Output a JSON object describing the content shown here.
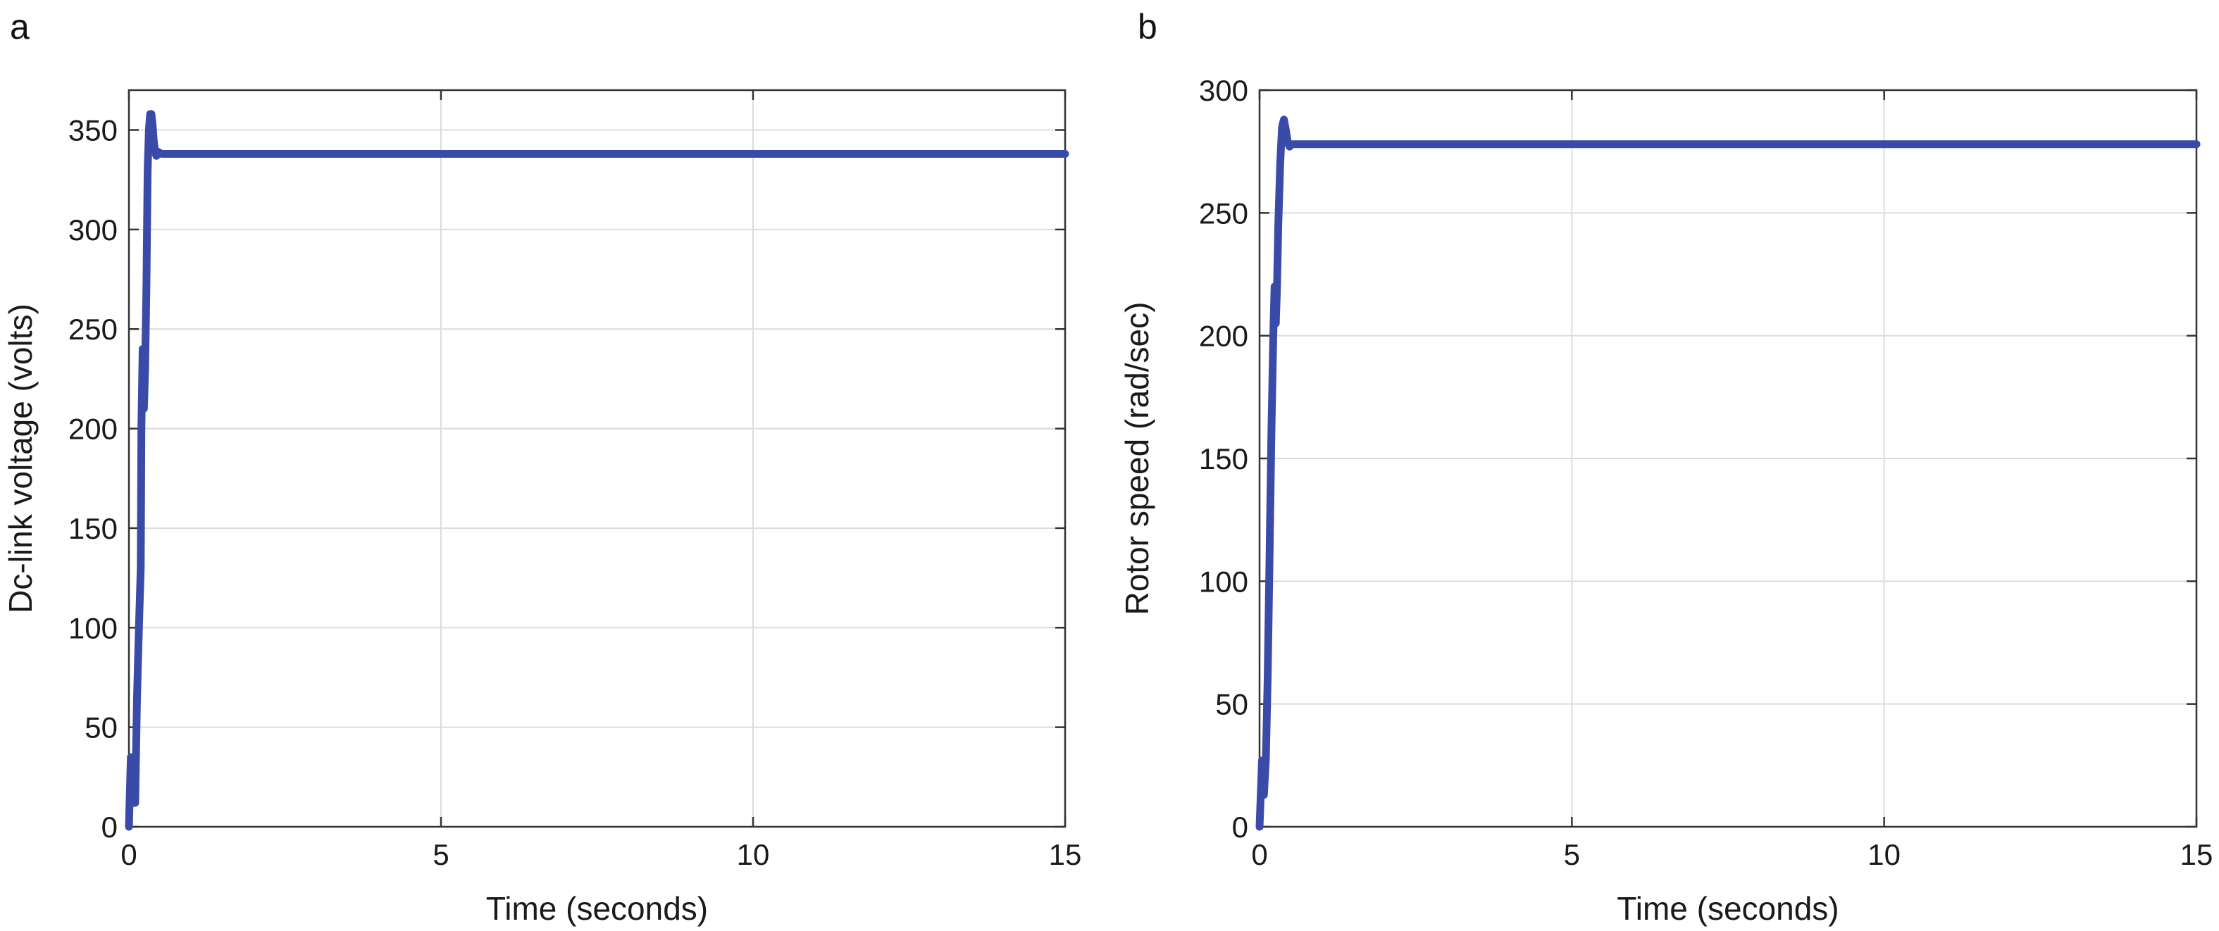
{
  "chart_data": [
    {
      "panel_label": "a",
      "type": "line",
      "xlabel": "Time (seconds)",
      "ylabel": "Dc-link voltage (volts)",
      "xlim": [
        0,
        15
      ],
      "ylim": [
        0,
        370
      ],
      "xticks": [
        0,
        5,
        10,
        15
      ],
      "yticks": [
        0,
        50,
        100,
        150,
        200,
        250,
        300,
        350
      ],
      "grid": true,
      "colors": {
        "series": "#3a4aa8"
      },
      "series": [
        {
          "x": [
            0,
            0.03,
            0.06,
            0.08,
            0.1,
            0.13,
            0.16,
            0.19,
            0.2,
            0.22,
            0.24,
            0.26,
            0.28,
            0.3,
            0.32,
            0.34,
            0.36,
            0.38,
            0.4,
            0.42,
            0.44,
            0.47,
            0.52,
            0.6,
            1,
            2,
            3,
            4,
            5,
            6,
            7,
            8,
            9,
            10,
            11,
            12,
            13,
            14,
            15
          ],
          "y": [
            0,
            35,
            12,
            35,
            12,
            65,
            100,
            130,
            200,
            240,
            210,
            230,
            270,
            330,
            350,
            358,
            358,
            352,
            344,
            339,
            337,
            339,
            338,
            338,
            338,
            338,
            338,
            338,
            338,
            338,
            338,
            338,
            338,
            338,
            338,
            338,
            338,
            338,
            338
          ]
        }
      ]
    },
    {
      "panel_label": "b",
      "type": "line",
      "xlabel": "Time (seconds)",
      "ylabel": "Rotor speed (rad/sec)",
      "xlim": [
        0,
        15
      ],
      "ylim": [
        0,
        300
      ],
      "xticks": [
        0,
        5,
        10,
        15
      ],
      "yticks": [
        0,
        50,
        100,
        150,
        200,
        250,
        300
      ],
      "grid": true,
      "colors": {
        "series": "#3a4aa8"
      },
      "series": [
        {
          "x": [
            0,
            0.04,
            0.07,
            0.1,
            0.13,
            0.16,
            0.19,
            0.22,
            0.24,
            0.26,
            0.28,
            0.3,
            0.33,
            0.36,
            0.39,
            0.42,
            0.45,
            0.48,
            0.52,
            0.6,
            0.8,
            1,
            2,
            3,
            4,
            5,
            6,
            7,
            8,
            9,
            10,
            11,
            12,
            13,
            14,
            15
          ],
          "y": [
            0,
            27,
            13,
            27,
            60,
            110,
            160,
            200,
            220,
            205,
            220,
            245,
            270,
            285,
            288,
            284,
            279,
            277,
            278,
            278,
            278,
            278,
            278,
            278,
            278,
            278,
            278,
            278,
            278,
            278,
            278,
            278,
            278,
            278,
            278,
            278
          ]
        }
      ]
    }
  ]
}
